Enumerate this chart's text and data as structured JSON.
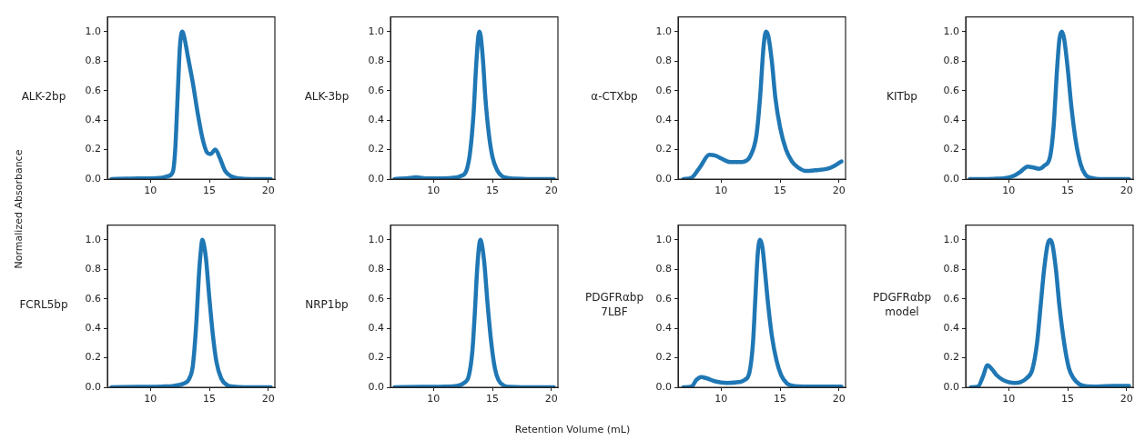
{
  "chart_data": [
    {
      "type": "line",
      "title": "ALK-2bp",
      "ylabel": "Normalized Absorbance",
      "xlim": [
        6.35,
        20.55
      ],
      "ylim": [
        0,
        1.1
      ],
      "xticks": [
        10,
        15,
        20
      ],
      "yticks": [
        {
          "value": 0,
          "label": "0.0"
        },
        {
          "value": 0.2,
          "label": "0.2"
        },
        {
          "value": 0.4,
          "label": "0.4"
        },
        {
          "value": 0.6,
          "label": "0.6"
        },
        {
          "value": 0.8,
          "label": "0.8"
        },
        {
          "value": 1,
          "label": "1.0"
        }
      ],
      "marker": "none",
      "line_style": "solid",
      "series": [
        {
          "color": "#1f77b4",
          "x": [
            6.7,
            8,
            9,
            10,
            11,
            11.5,
            11.9,
            12.1,
            12.3,
            12.5,
            12.7,
            12.9,
            13.2,
            13.6,
            14,
            14.4,
            14.8,
            15.1,
            15.5,
            15.9,
            16.3,
            16.8,
            17.5,
            18.5,
            20.2
          ],
          "values": [
            0,
            0.003,
            0.005,
            0.005,
            0.01,
            0.02,
            0.05,
            0.2,
            0.55,
            0.9,
            1.0,
            0.95,
            0.82,
            0.65,
            0.45,
            0.28,
            0.18,
            0.17,
            0.2,
            0.14,
            0.06,
            0.02,
            0.005,
            0,
            0
          ]
        }
      ]
    },
    {
      "type": "line",
      "title": "ALK-3bp",
      "xlim": [
        6.35,
        20.55
      ],
      "ylim": [
        0,
        1.1
      ],
      "xticks": [
        10,
        15,
        20
      ],
      "yticks": [
        {
          "value": 0,
          "label": "0.0"
        },
        {
          "value": 0.2,
          "label": "0.2"
        },
        {
          "value": 0.4,
          "label": "0.4"
        },
        {
          "value": 0.6,
          "label": "0.6"
        },
        {
          "value": 0.8,
          "label": "0.8"
        },
        {
          "value": 1,
          "label": "1.0"
        }
      ],
      "marker": "none",
      "line_style": "solid",
      "series": [
        {
          "color": "#1f77b4",
          "x": [
            6.7,
            8,
            8.5,
            9.5,
            10.5,
            11.5,
            12.3,
            12.8,
            13.1,
            13.4,
            13.6,
            13.8,
            13.9,
            14.0,
            14.2,
            14.4,
            14.7,
            15.0,
            15.4,
            15.8,
            16.3,
            17,
            18,
            20.2
          ],
          "values": [
            0,
            0.008,
            0.012,
            0.005,
            0.005,
            0.008,
            0.02,
            0.06,
            0.18,
            0.45,
            0.75,
            0.97,
            1.0,
            0.97,
            0.8,
            0.55,
            0.3,
            0.15,
            0.06,
            0.02,
            0.008,
            0.003,
            0,
            0
          ]
        }
      ]
    },
    {
      "type": "line",
      "title": "α-CTXbp",
      "xlim": [
        6.35,
        20.55
      ],
      "ylim": [
        0,
        1.1
      ],
      "xticks": [
        10,
        15,
        20
      ],
      "yticks": [
        {
          "value": 0,
          "label": "0.0"
        },
        {
          "value": 0.2,
          "label": "0.2"
        },
        {
          "value": 0.4,
          "label": "0.4"
        },
        {
          "value": 0.6,
          "label": "0.6"
        },
        {
          "value": 0.8,
          "label": "0.8"
        },
        {
          "value": 1,
          "label": "1.0"
        }
      ],
      "marker": "none",
      "line_style": "solid",
      "series": [
        {
          "color": "#1f77b4",
          "x": [
            6.8,
            7.5,
            8.2,
            9,
            9.5,
            10,
            10.8,
            11.5,
            12,
            12.5,
            13,
            13.3,
            13.6,
            13.8,
            14,
            14.3,
            14.6,
            15,
            15.5,
            16,
            16.5,
            17.2,
            18,
            19,
            19.6,
            20,
            20.2
          ],
          "values": [
            0,
            0.01,
            0.08,
            0.165,
            0.16,
            0.14,
            0.115,
            0.115,
            0.12,
            0.16,
            0.3,
            0.55,
            0.9,
            1.0,
            0.97,
            0.8,
            0.55,
            0.35,
            0.2,
            0.12,
            0.08,
            0.055,
            0.06,
            0.07,
            0.09,
            0.11,
            0.12
          ]
        }
      ]
    },
    {
      "type": "line",
      "title": "KITbp",
      "xlim": [
        6.35,
        20.55
      ],
      "ylim": [
        0,
        1.1
      ],
      "xticks": [
        10,
        15,
        20
      ],
      "yticks": [
        {
          "value": 0,
          "label": "0.0"
        },
        {
          "value": 0.2,
          "label": "0.2"
        },
        {
          "value": 0.4,
          "label": "0.4"
        },
        {
          "value": 0.6,
          "label": "0.6"
        },
        {
          "value": 0.8,
          "label": "0.8"
        },
        {
          "value": 1,
          "label": "1.0"
        }
      ],
      "marker": "none",
      "line_style": "solid",
      "series": [
        {
          "color": "#1f77b4",
          "x": [
            6.7,
            8,
            9,
            9.8,
            10.5,
            11,
            11.6,
            12,
            12.6,
            13,
            13.5,
            13.8,
            14.1,
            14.3,
            14.5,
            14.7,
            15,
            15.3,
            15.7,
            16.1,
            16.5,
            17,
            18,
            20.2
          ],
          "values": [
            0,
            0,
            0.003,
            0.008,
            0.025,
            0.05,
            0.085,
            0.08,
            0.07,
            0.09,
            0.15,
            0.35,
            0.75,
            0.95,
            1.0,
            0.95,
            0.75,
            0.5,
            0.25,
            0.1,
            0.03,
            0.008,
            0,
            0
          ]
        }
      ]
    },
    {
      "type": "line",
      "title": "FCRL5bp",
      "xlim": [
        6.35,
        20.55
      ],
      "ylim": [
        0,
        1.1
      ],
      "xticks": [
        10,
        15,
        20
      ],
      "yticks": [
        {
          "value": 0,
          "label": "0.0"
        },
        {
          "value": 0.2,
          "label": "0.2"
        },
        {
          "value": 0.4,
          "label": "0.4"
        },
        {
          "value": 0.6,
          "label": "0.6"
        },
        {
          "value": 0.8,
          "label": "0.8"
        },
        {
          "value": 1,
          "label": "1.0"
        }
      ],
      "marker": "none",
      "line_style": "solid",
      "series": [
        {
          "color": "#1f77b4",
          "x": [
            6.7,
            9,
            11,
            12,
            12.8,
            13.3,
            13.6,
            13.9,
            14.1,
            14.3,
            14.4,
            14.5,
            14.7,
            15,
            15.3,
            15.6,
            16,
            16.5,
            17,
            18,
            20.2
          ],
          "values": [
            0,
            0.003,
            0.005,
            0.01,
            0.025,
            0.06,
            0.15,
            0.45,
            0.75,
            0.95,
            1.0,
            0.98,
            0.88,
            0.6,
            0.35,
            0.17,
            0.06,
            0.015,
            0.005,
            0,
            0
          ]
        }
      ]
    },
    {
      "type": "line",
      "title": "NRP1bp",
      "xlabel": "Retention Volume (mL)",
      "xlim": [
        6.35,
        20.55
      ],
      "ylim": [
        0,
        1.1
      ],
      "xticks": [
        10,
        15,
        20
      ],
      "yticks": [
        {
          "value": 0,
          "label": "0.0"
        },
        {
          "value": 0.2,
          "label": "0.2"
        },
        {
          "value": 0.4,
          "label": "0.4"
        },
        {
          "value": 0.6,
          "label": "0.6"
        },
        {
          "value": 0.8,
          "label": "0.8"
        },
        {
          "value": 1,
          "label": "1.0"
        }
      ],
      "marker": "none",
      "line_style": "solid",
      "series": [
        {
          "color": "#1f77b4",
          "x": [
            6.7,
            9,
            11,
            12,
            12.6,
            13,
            13.3,
            13.5,
            13.7,
            13.9,
            14.0,
            14.1,
            14.3,
            14.6,
            14.9,
            15.2,
            15.5,
            16,
            16.5,
            17.5,
            20.2
          ],
          "values": [
            0,
            0.003,
            0.005,
            0.01,
            0.03,
            0.08,
            0.25,
            0.5,
            0.8,
            0.98,
            1.0,
            0.97,
            0.85,
            0.55,
            0.3,
            0.13,
            0.05,
            0.01,
            0.003,
            0,
            0
          ]
        }
      ]
    },
    {
      "type": "line",
      "title": "PDGFRαbp\n7LBF",
      "xlim": [
        6.35,
        20.55
      ],
      "ylim": [
        0,
        1.1
      ],
      "xticks": [
        10,
        15,
        20
      ],
      "yticks": [
        {
          "value": 0,
          "label": "0.0"
        },
        {
          "value": 0.2,
          "label": "0.2"
        },
        {
          "value": 0.4,
          "label": "0.4"
        },
        {
          "value": 0.6,
          "label": "0.6"
        },
        {
          "value": 0.8,
          "label": "0.8"
        },
        {
          "value": 1,
          "label": "1.0"
        }
      ],
      "marker": "none",
      "line_style": "solid",
      "series": [
        {
          "color": "#1f77b4",
          "x": [
            6.8,
            7.5,
            7.9,
            8.3,
            8.8,
            9.5,
            10.5,
            11.5,
            12,
            12.4,
            12.7,
            12.9,
            13.1,
            13.3,
            13.5,
            13.7,
            14,
            14.3,
            14.7,
            15.1,
            15.6,
            16.2,
            17,
            18,
            20.2
          ],
          "values": [
            0,
            0.005,
            0.05,
            0.07,
            0.06,
            0.04,
            0.03,
            0.035,
            0.05,
            0.1,
            0.3,
            0.6,
            0.9,
            1.0,
            0.95,
            0.8,
            0.55,
            0.35,
            0.18,
            0.08,
            0.025,
            0.008,
            0.005,
            0.005,
            0.005
          ]
        }
      ]
    },
    {
      "type": "line",
      "title": "PDGFRαbp\nmodel",
      "xlim": [
        6.35,
        20.55
      ],
      "ylim": [
        0,
        1.1
      ],
      "xticks": [
        10,
        15,
        20
      ],
      "yticks": [
        {
          "value": 0,
          "label": "0.0"
        },
        {
          "value": 0.2,
          "label": "0.2"
        },
        {
          "value": 0.4,
          "label": "0.4"
        },
        {
          "value": 0.6,
          "label": "0.6"
        },
        {
          "value": 0.8,
          "label": "0.8"
        },
        {
          "value": 1,
          "label": "1.0"
        }
      ],
      "marker": "none",
      "line_style": "solid",
      "series": [
        {
          "color": "#1f77b4",
          "x": [
            6.8,
            7.4,
            7.8,
            8.2,
            8.6,
            9,
            9.5,
            10,
            10.5,
            11,
            11.5,
            12,
            12.4,
            12.7,
            13,
            13.3,
            13.5,
            13.7,
            14,
            14.3,
            14.7,
            15.1,
            15.5,
            16,
            16.5,
            17.5,
            19,
            20.2
          ],
          "values": [
            0,
            0.005,
            0.07,
            0.15,
            0.12,
            0.08,
            0.05,
            0.035,
            0.03,
            0.035,
            0.06,
            0.12,
            0.3,
            0.55,
            0.8,
            0.97,
            1.0,
            0.97,
            0.8,
            0.55,
            0.3,
            0.13,
            0.06,
            0.02,
            0.008,
            0.005,
            0.01,
            0.01
          ]
        }
      ]
    }
  ]
}
